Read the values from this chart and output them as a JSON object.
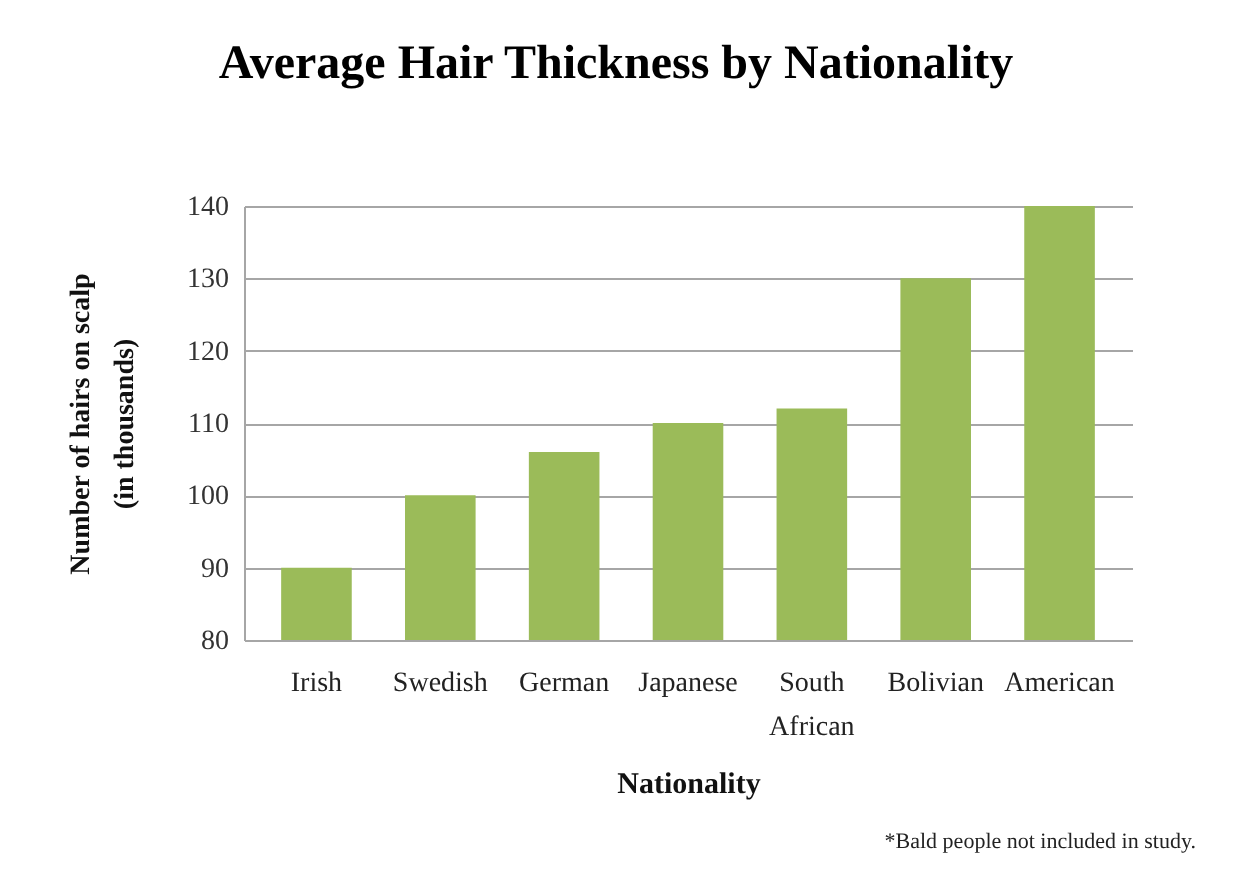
{
  "chart_data": {
    "type": "bar",
    "title": "Average Hair Thickness by Nationality",
    "xlabel": "Nationality",
    "ylabel": "Number of hairs on scalp (in thousands)",
    "categories": [
      "Irish",
      "Swedish",
      "German",
      "Japanese",
      "South African",
      "Bolivian",
      "American"
    ],
    "values": [
      90,
      100,
      106,
      110,
      112,
      130,
      140
    ],
    "color": "#9bbb59",
    "ylim": [
      80,
      140
    ],
    "yticks": [
      80,
      90,
      100,
      110,
      120,
      130,
      140
    ],
    "grid": "y",
    "annotations": [
      "*Bald people not included in study."
    ]
  }
}
